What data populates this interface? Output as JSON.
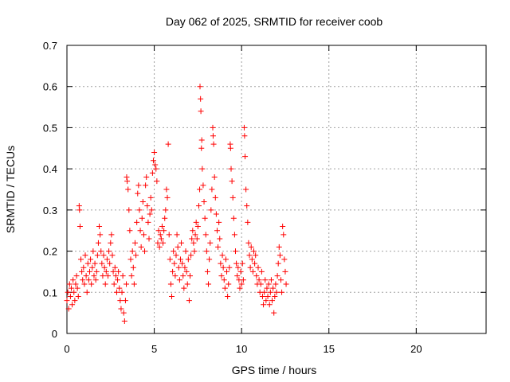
{
  "chart_data": {
    "type": "scatter",
    "title": "Day 062 of 2025, SRMTID for receiver coob",
    "xlabel": "GPS time / hours",
    "ylabel": "SRMTID / TECUs",
    "xlim": [
      0,
      24
    ],
    "ylim": [
      0,
      0.7
    ],
    "xticks": [
      0,
      5,
      10,
      15,
      20
    ],
    "yticks": [
      0,
      0.1,
      0.2,
      0.3,
      0.4,
      0.5,
      0.6,
      0.7
    ],
    "grid": true,
    "marker": "+",
    "color": "#ff0000",
    "series": [
      {
        "name": "SRMTID",
        "points": [
          [
            0.0,
            0.08
          ],
          [
            0.05,
            0.1
          ],
          [
            0.1,
            0.06
          ],
          [
            0.15,
            0.12
          ],
          [
            0.2,
            0.09
          ],
          [
            0.25,
            0.11
          ],
          [
            0.3,
            0.07
          ],
          [
            0.35,
            0.13
          ],
          [
            0.4,
            0.1
          ],
          [
            0.45,
            0.08
          ],
          [
            0.5,
            0.12
          ],
          [
            0.55,
            0.14
          ],
          [
            0.6,
            0.11
          ],
          [
            0.65,
            0.09
          ],
          [
            0.7,
            0.31
          ],
          [
            0.72,
            0.3
          ],
          [
            0.75,
            0.26
          ],
          [
            0.8,
            0.18
          ],
          [
            0.85,
            0.15
          ],
          [
            0.9,
            0.13
          ],
          [
            0.95,
            0.16
          ],
          [
            1.0,
            0.12
          ],
          [
            1.05,
            0.19
          ],
          [
            1.1,
            0.14
          ],
          [
            1.15,
            0.1
          ],
          [
            1.2,
            0.17
          ],
          [
            1.25,
            0.13
          ],
          [
            1.3,
            0.15
          ],
          [
            1.35,
            0.18
          ],
          [
            1.4,
            0.12
          ],
          [
            1.45,
            0.16
          ],
          [
            1.5,
            0.2
          ],
          [
            1.55,
            0.14
          ],
          [
            1.6,
            0.17
          ],
          [
            1.65,
            0.13
          ],
          [
            1.7,
            0.15
          ],
          [
            1.75,
            0.19
          ],
          [
            1.8,
            0.22
          ],
          [
            1.85,
            0.26
          ],
          [
            1.9,
            0.24
          ],
          [
            1.95,
            0.2
          ],
          [
            2.0,
            0.17
          ],
          [
            2.05,
            0.14
          ],
          [
            2.1,
            0.19
          ],
          [
            2.15,
            0.16
          ],
          [
            2.2,
            0.12
          ],
          [
            2.25,
            0.15
          ],
          [
            2.3,
            0.18
          ],
          [
            2.35,
            0.14
          ],
          [
            2.4,
            0.2
          ],
          [
            2.45,
            0.17
          ],
          [
            2.5,
            0.22
          ],
          [
            2.55,
            0.24
          ],
          [
            2.6,
            0.19
          ],
          [
            2.65,
            0.15
          ],
          [
            2.7,
            0.12
          ],
          [
            2.75,
            0.16
          ],
          [
            2.8,
            0.14
          ],
          [
            2.85,
            0.1
          ],
          [
            2.9,
            0.13
          ],
          [
            2.95,
            0.15
          ],
          [
            3.0,
            0.11
          ],
          [
            3.05,
            0.08
          ],
          [
            3.1,
            0.06
          ],
          [
            3.15,
            0.1
          ],
          [
            3.2,
            0.14
          ],
          [
            3.25,
            0.05
          ],
          [
            3.3,
            0.03
          ],
          [
            3.35,
            0.08
          ],
          [
            3.4,
            0.12
          ],
          [
            3.42,
            0.38
          ],
          [
            3.45,
            0.37
          ],
          [
            3.5,
            0.35
          ],
          [
            3.55,
            0.3
          ],
          [
            3.6,
            0.25
          ],
          [
            3.65,
            0.18
          ],
          [
            3.7,
            0.14
          ],
          [
            3.75,
            0.2
          ],
          [
            3.8,
            0.16
          ],
          [
            3.85,
            0.12
          ],
          [
            3.9,
            0.22
          ],
          [
            3.95,
            0.19
          ],
          [
            4.0,
            0.27
          ],
          [
            4.05,
            0.34
          ],
          [
            4.1,
            0.36
          ],
          [
            4.15,
            0.3
          ],
          [
            4.2,
            0.25
          ],
          [
            4.25,
            0.21
          ],
          [
            4.3,
            0.28
          ],
          [
            4.35,
            0.32
          ],
          [
            4.4,
            0.24
          ],
          [
            4.45,
            0.2
          ],
          [
            4.5,
            0.36
          ],
          [
            4.55,
            0.38
          ],
          [
            4.6,
            0.31
          ],
          [
            4.65,
            0.27
          ],
          [
            4.7,
            0.23
          ],
          [
            4.75,
            0.29
          ],
          [
            4.8,
            0.33
          ],
          [
            4.85,
            0.3
          ],
          [
            4.9,
            0.39
          ],
          [
            4.95,
            0.42
          ],
          [
            5.0,
            0.44
          ],
          [
            5.05,
            0.41
          ],
          [
            5.1,
            0.4
          ],
          [
            5.15,
            0.37
          ],
          [
            5.2,
            0.22
          ],
          [
            5.25,
            0.25
          ],
          [
            5.3,
            0.21
          ],
          [
            5.35,
            0.24
          ],
          [
            5.4,
            0.23
          ],
          [
            5.45,
            0.26
          ],
          [
            5.5,
            0.22
          ],
          [
            5.55,
            0.25
          ],
          [
            5.6,
            0.28
          ],
          [
            5.65,
            0.3
          ],
          [
            5.7,
            0.35
          ],
          [
            5.75,
            0.33
          ],
          [
            5.8,
            0.46
          ],
          [
            5.85,
            0.24
          ],
          [
            5.9,
            0.18
          ],
          [
            5.95,
            0.12
          ],
          [
            6.0,
            0.09
          ],
          [
            6.05,
            0.15
          ],
          [
            6.1,
            0.2
          ],
          [
            6.15,
            0.17
          ],
          [
            6.2,
            0.14
          ],
          [
            6.25,
            0.19
          ],
          [
            6.3,
            0.24
          ],
          [
            6.35,
            0.21
          ],
          [
            6.4,
            0.16
          ],
          [
            6.45,
            0.13
          ],
          [
            6.5,
            0.18
          ],
          [
            6.55,
            0.22
          ],
          [
            6.6,
            0.17
          ],
          [
            6.65,
            0.14
          ],
          [
            6.7,
            0.11
          ],
          [
            6.75,
            0.16
          ],
          [
            6.8,
            0.2
          ],
          [
            6.85,
            0.15
          ],
          [
            6.9,
            0.12
          ],
          [
            6.95,
            0.18
          ],
          [
            7.0,
            0.08
          ],
          [
            7.05,
            0.14
          ],
          [
            7.1,
            0.19
          ],
          [
            7.15,
            0.23
          ],
          [
            7.2,
            0.25
          ],
          [
            7.25,
            0.22
          ],
          [
            7.3,
            0.2
          ],
          [
            7.35,
            0.24
          ],
          [
            7.4,
            0.27
          ],
          [
            7.45,
            0.23
          ],
          [
            7.5,
            0.26
          ],
          [
            7.55,
            0.31
          ],
          [
            7.6,
            0.35
          ],
          [
            7.62,
            0.6
          ],
          [
            7.65,
            0.57
          ],
          [
            7.67,
            0.54
          ],
          [
            7.7,
            0.45
          ],
          [
            7.72,
            0.47
          ],
          [
            7.75,
            0.4
          ],
          [
            7.8,
            0.36
          ],
          [
            7.85,
            0.32
          ],
          [
            7.9,
            0.28
          ],
          [
            7.95,
            0.24
          ],
          [
            8.0,
            0.2
          ],
          [
            8.05,
            0.15
          ],
          [
            8.1,
            0.12
          ],
          [
            8.15,
            0.18
          ],
          [
            8.2,
            0.22
          ],
          [
            8.25,
            0.3
          ],
          [
            8.3,
            0.35
          ],
          [
            8.35,
            0.5
          ],
          [
            8.37,
            0.48
          ],
          [
            8.4,
            0.46
          ],
          [
            8.45,
            0.38
          ],
          [
            8.5,
            0.33
          ],
          [
            8.55,
            0.29
          ],
          [
            8.6,
            0.25
          ],
          [
            8.65,
            0.21
          ],
          [
            8.7,
            0.27
          ],
          [
            8.75,
            0.23
          ],
          [
            8.8,
            0.17
          ],
          [
            8.85,
            0.14
          ],
          [
            8.9,
            0.19
          ],
          [
            8.95,
            0.16
          ],
          [
            9.0,
            0.13
          ],
          [
            9.05,
            0.11
          ],
          [
            9.1,
            0.18
          ],
          [
            9.15,
            0.15
          ],
          [
            9.2,
            0.09
          ],
          [
            9.25,
            0.12
          ],
          [
            9.3,
            0.16
          ],
          [
            9.35,
            0.46
          ],
          [
            9.37,
            0.45
          ],
          [
            9.4,
            0.4
          ],
          [
            9.45,
            0.37
          ],
          [
            9.5,
            0.33
          ],
          [
            9.55,
            0.28
          ],
          [
            9.6,
            0.24
          ],
          [
            9.65,
            0.2
          ],
          [
            9.7,
            0.17
          ],
          [
            9.75,
            0.14
          ],
          [
            9.8,
            0.16
          ],
          [
            9.85,
            0.13
          ],
          [
            9.9,
            0.11
          ],
          [
            9.95,
            0.15
          ],
          [
            10.0,
            0.12
          ],
          [
            10.05,
            0.17
          ],
          [
            10.1,
            0.13
          ],
          [
            10.15,
            0.5
          ],
          [
            10.17,
            0.48
          ],
          [
            10.2,
            0.43
          ],
          [
            10.25,
            0.35
          ],
          [
            10.3,
            0.31
          ],
          [
            10.35,
            0.27
          ],
          [
            10.4,
            0.22
          ],
          [
            10.45,
            0.19
          ],
          [
            10.5,
            0.16
          ],
          [
            10.55,
            0.21
          ],
          [
            10.6,
            0.18
          ],
          [
            10.65,
            0.15
          ],
          [
            10.7,
            0.2
          ],
          [
            10.75,
            0.17
          ],
          [
            10.8,
            0.19
          ],
          [
            10.85,
            0.14
          ],
          [
            10.9,
            0.12
          ],
          [
            10.95,
            0.16
          ],
          [
            11.0,
            0.13
          ],
          [
            11.05,
            0.1
          ],
          [
            11.1,
            0.12
          ],
          [
            11.15,
            0.15
          ],
          [
            11.2,
            0.09
          ],
          [
            11.25,
            0.07
          ],
          [
            11.3,
            0.1
          ],
          [
            11.35,
            0.13
          ],
          [
            11.4,
            0.08
          ],
          [
            11.45,
            0.11
          ],
          [
            11.5,
            0.09
          ],
          [
            11.55,
            0.12
          ],
          [
            11.6,
            0.07
          ],
          [
            11.65,
            0.1
          ],
          [
            11.7,
            0.13
          ],
          [
            11.75,
            0.08
          ],
          [
            11.8,
            0.11
          ],
          [
            11.85,
            0.05
          ],
          [
            11.9,
            0.09
          ],
          [
            11.95,
            0.12
          ],
          [
            12.0,
            0.1
          ],
          [
            12.05,
            0.14
          ],
          [
            12.1,
            0.17
          ],
          [
            12.15,
            0.21
          ],
          [
            12.2,
            0.19
          ],
          [
            12.25,
            0.13
          ],
          [
            12.3,
            0.1
          ],
          [
            12.35,
            0.26
          ],
          [
            12.4,
            0.24
          ],
          [
            12.45,
            0.18
          ],
          [
            12.5,
            0.15
          ],
          [
            12.55,
            0.12
          ]
        ]
      }
    ]
  }
}
